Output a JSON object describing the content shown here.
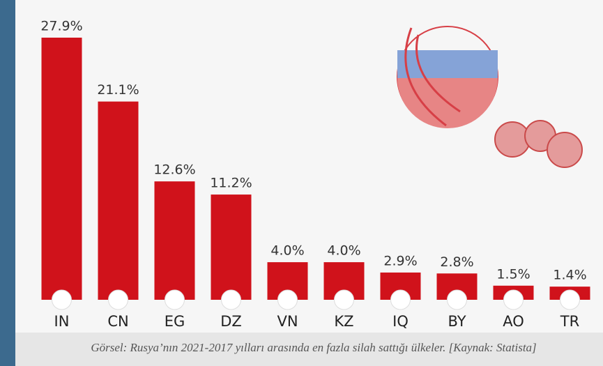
{
  "chart_data": {
    "type": "bar",
    "categories": [
      "IN",
      "CN",
      "EG",
      "DZ",
      "VN",
      "KZ",
      "IQ",
      "BY",
      "AO",
      "TR"
    ],
    "values": [
      27.9,
      21.1,
      12.6,
      11.2,
      4.0,
      4.0,
      2.9,
      2.8,
      1.5,
      1.4
    ],
    "value_labels": [
      "27.9%",
      "21.1%",
      "12.6%",
      "11.2%",
      "4.0%",
      "4.0%",
      "2.9%",
      "2.8%",
      "1.5%",
      "1.4%"
    ],
    "color": "#d0121b"
  },
  "caption": "Görsel: Rusya’nın 2021-2017 yılları arasında en fazla silah sattığı ülkeler. [Kaynak: Statista]"
}
